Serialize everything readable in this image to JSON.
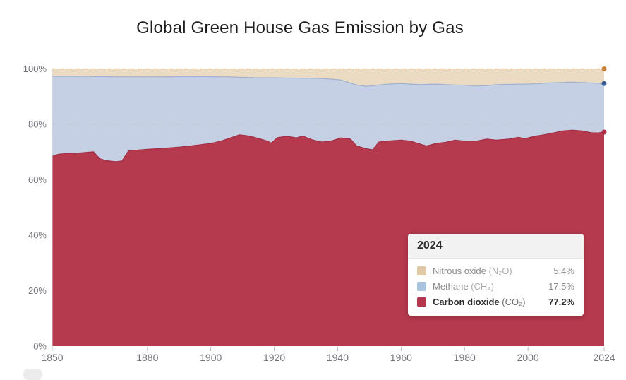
{
  "chart": {
    "title": "Global Green House Gas Emission by Gas"
  },
  "tooltip": {
    "title": "2024",
    "rows": [
      {
        "label": "Nitrous oxide",
        "formula": "(N₂O)",
        "value": "5.4%",
        "color": "#e2c9a6",
        "emphasis": false
      },
      {
        "label": "Methane",
        "formula": "(CH₄)",
        "value": "17.5%",
        "color": "#a9c2de",
        "emphasis": false
      },
      {
        "label": "Carbon dioxide",
        "formula": "(CO₂)",
        "value": "77.2%",
        "color": "#b4354c",
        "emphasis": true
      }
    ]
  },
  "chart_data": {
    "type": "area",
    "stacked": true,
    "relative": true,
    "title": "Global Green House Gas Emission by Gas",
    "xlabel": "",
    "ylabel": "",
    "xlim": [
      1850,
      2024
    ],
    "ylim": [
      0,
      100
    ],
    "grid": "dashed horizontal at 80% and 100% only",
    "legend_position": "tooltip",
    "hover_year": 2024,
    "x": [
      1850,
      1852,
      1855,
      1858,
      1861,
      1863,
      1865,
      1867,
      1870,
      1872,
      1874,
      1877,
      1880,
      1885,
      1890,
      1895,
      1900,
      1903,
      1906,
      1909,
      1912,
      1915,
      1918,
      1919,
      1921,
      1924,
      1927,
      1929,
      1932,
      1935,
      1938,
      1941,
      1944,
      1946,
      1949,
      1951,
      1953,
      1956,
      1960,
      1963,
      1966,
      1968,
      1971,
      1974,
      1977,
      1980,
      1984,
      1987,
      1990,
      1994,
      1997,
      1999,
      2002,
      2005,
      2008,
      2011,
      2014,
      2017,
      2020,
      2022,
      2024
    ],
    "series": [
      {
        "name": "Carbon dioxide (CO₂)",
        "fill": "#b63a4d",
        "edge": "#a02f45",
        "dot": "#b02c46",
        "values": [
          68.4,
          69.2,
          69.5,
          69.6,
          69.9,
          70.1,
          67.6,
          66.9,
          66.5,
          66.8,
          70.4,
          70.7,
          71.0,
          71.3,
          71.8,
          72.4,
          73.1,
          73.9,
          75.0,
          76.2,
          75.8,
          74.9,
          73.9,
          73.2,
          75.2,
          75.7,
          75.1,
          75.8,
          74.4,
          73.6,
          74.0,
          75.1,
          74.7,
          72.2,
          71.2,
          70.8,
          73.6,
          74.0,
          74.3,
          73.9,
          72.9,
          72.2,
          73.1,
          73.5,
          74.3,
          73.9,
          74.0,
          74.7,
          74.3,
          74.7,
          75.3,
          74.8,
          75.7,
          76.2,
          76.9,
          77.6,
          77.9,
          77.6,
          77.0,
          76.9,
          77.2
        ]
      },
      {
        "name": "Methane (CH₄)",
        "fill": "#c5d0e4",
        "edge": "#9fb1cf",
        "dot": "#3f6094",
        "values": [
          28.9,
          28.1,
          27.8,
          27.7,
          27.4,
          27.1,
          29.6,
          30.3,
          30.6,
          30.3,
          26.7,
          26.4,
          26.1,
          25.8,
          25.4,
          24.8,
          24.1,
          23.2,
          22.1,
          20.8,
          21.1,
          21.9,
          22.9,
          23.6,
          21.6,
          21.0,
          21.6,
          20.8,
          22.2,
          22.9,
          22.3,
          20.9,
          20.2,
          22.0,
          22.5,
          23.1,
          20.6,
          20.5,
          20.4,
          20.6,
          21.4,
          22.2,
          21.4,
          20.8,
          19.9,
          20.2,
          19.8,
          19.3,
          20.0,
          19.7,
          19.2,
          19.7,
          18.9,
          18.6,
          18.1,
          17.5,
          17.3,
          17.5,
          17.9,
          17.9,
          17.5
        ]
      },
      {
        "name": "Nitrous oxide (N₂O)",
        "fill": "#ecdbc3",
        "edge": "#dcc29b",
        "dot": "#c8813b",
        "values": [
          2.7,
          2.7,
          2.7,
          2.7,
          2.7,
          2.8,
          2.8,
          2.8,
          2.9,
          2.9,
          2.9,
          2.9,
          2.9,
          2.9,
          2.8,
          2.8,
          2.8,
          2.9,
          2.9,
          3.0,
          3.1,
          3.2,
          3.2,
          3.2,
          3.2,
          3.3,
          3.3,
          3.4,
          3.4,
          3.5,
          3.7,
          4.0,
          5.1,
          5.8,
          6.3,
          6.1,
          5.8,
          5.5,
          5.3,
          5.5,
          5.7,
          5.6,
          5.5,
          5.7,
          5.8,
          5.9,
          6.2,
          6.0,
          5.7,
          5.6,
          5.5,
          5.5,
          5.4,
          5.2,
          5.0,
          4.9,
          4.8,
          4.9,
          5.1,
          5.2,
          5.4
        ]
      }
    ],
    "xtick_values": [
      1850,
      1880,
      1900,
      1920,
      1940,
      1960,
      1980,
      2000,
      2024
    ],
    "xtick_labels": [
      "1850",
      "1880",
      "1900",
      "1920",
      "1940",
      "1960",
      "1980",
      "2000",
      "2024"
    ],
    "ytick_values": [
      0,
      20,
      40,
      60,
      80,
      100
    ],
    "ytick_labels": [
      "0%",
      "20%",
      "40%",
      "60%",
      "80%",
      "100%"
    ],
    "colors": {
      "grid_80": "#c6c6d2",
      "grid_100": "#d6b286",
      "axis": "#d5d5d5",
      "tick": "#b5b5b5",
      "tick_text": "#75757f"
    }
  }
}
